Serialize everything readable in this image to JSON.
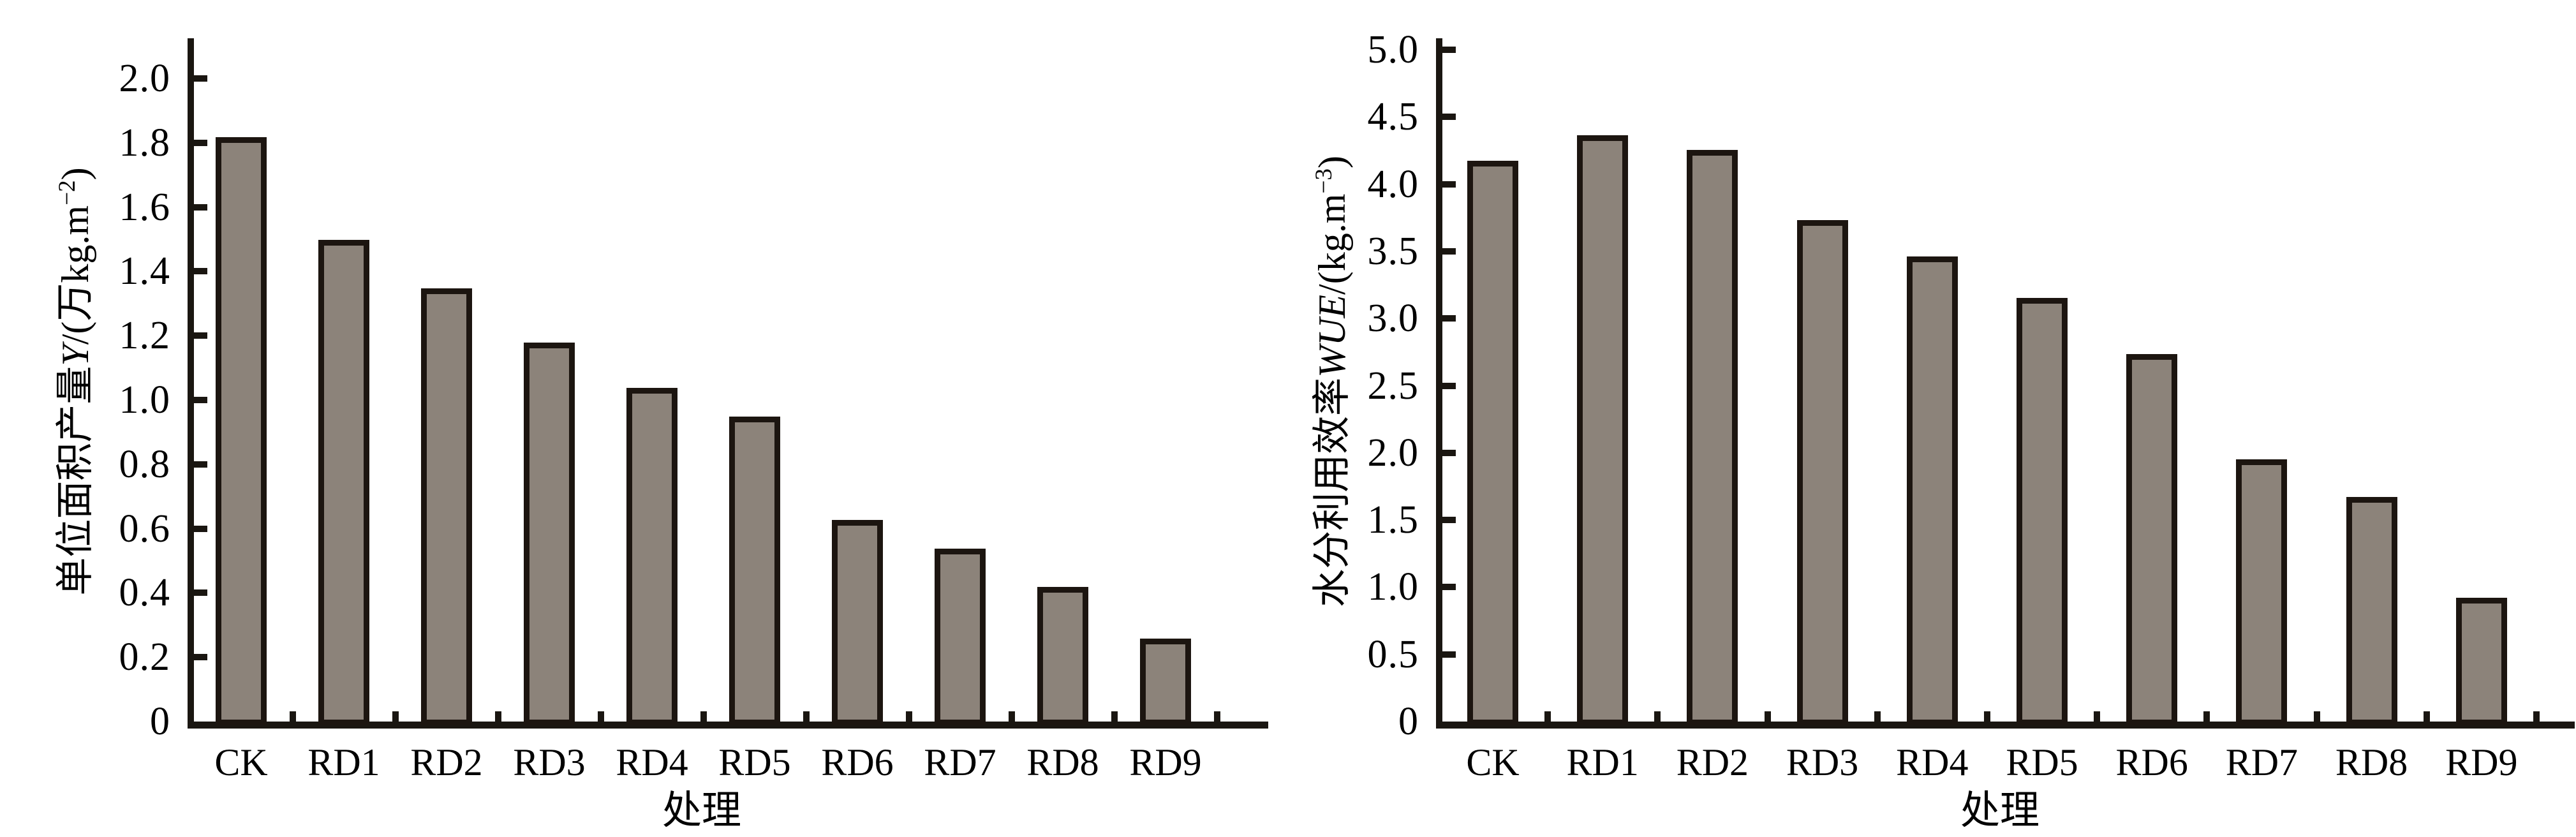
{
  "figure": {
    "description": "Two-panel bar chart figure comparing treatments",
    "background": "#ffffff",
    "bar_fill_color": "#8c837a",
    "bar_border_color": "#1c1510",
    "axis_color": "#1a1611"
  },
  "chart_data": [
    {
      "type": "bar",
      "title": "",
      "xlabel": "处理",
      "ylabel": "单位面积产量Y/(万kg.m−2)",
      "ylabel_parts": {
        "prefix": "单位面积产量",
        "variable": "Y",
        "unit_open": "/(万kg.m",
        "unit_sup": "−2",
        "unit_close": ")"
      },
      "categories": [
        "CK",
        "RD1",
        "RD2",
        "RD3",
        "RD4",
        "RD5",
        "RD6",
        "RD7",
        "RD8",
        "RD9"
      ],
      "values": [
        1.8,
        1.48,
        1.33,
        1.16,
        1.02,
        0.93,
        0.61,
        0.52,
        0.4,
        0.24
      ],
      "ylim": [
        0,
        2.15
      ],
      "grid": false,
      "legend": null,
      "yticks": [
        {
          "v": 0,
          "label": "0"
        },
        {
          "v": 0.2,
          "label": "0.2"
        },
        {
          "v": 0.4,
          "label": "0.4"
        },
        {
          "v": 0.6,
          "label": "0.6"
        },
        {
          "v": 0.8,
          "label": "0.8"
        },
        {
          "v": 1.0,
          "label": "1.0"
        },
        {
          "v": 1.2,
          "label": "1.2"
        },
        {
          "v": 1.4,
          "label": "1.4"
        },
        {
          "v": 1.6,
          "label": "1.6"
        },
        {
          "v": 1.8,
          "label": "1.8"
        },
        {
          "v": 2.0,
          "label": "2.0"
        }
      ]
    },
    {
      "type": "bar",
      "title": "",
      "xlabel": "处理",
      "ylabel": "水分利用效率WUE/(kg.m−3)",
      "ylabel_parts": {
        "prefix": "水分利用效率",
        "variable": "WUE",
        "unit_open": "/(kg.m",
        "unit_sup": "−3",
        "unit_close": ")"
      },
      "categories": [
        "CK",
        "RD1",
        "RD2",
        "RD3",
        "RD4",
        "RD5",
        "RD6",
        "RD7",
        "RD8",
        "RD9"
      ],
      "values": [
        4.13,
        4.32,
        4.21,
        3.69,
        3.42,
        3.11,
        2.69,
        1.91,
        1.63,
        0.88
      ],
      "ylim": [
        0,
        5.1
      ],
      "grid": false,
      "legend": null,
      "yticks": [
        {
          "v": 0,
          "label": "0"
        },
        {
          "v": 0.5,
          "label": "0.5"
        },
        {
          "v": 1.0,
          "label": "1.0"
        },
        {
          "v": 1.5,
          "label": "1.5"
        },
        {
          "v": 2.0,
          "label": "2.0"
        },
        {
          "v": 2.5,
          "label": "2.5"
        },
        {
          "v": 3.0,
          "label": "3.0"
        },
        {
          "v": 3.5,
          "label": "3.5"
        },
        {
          "v": 4.0,
          "label": "4.0"
        },
        {
          "v": 4.5,
          "label": "4.5"
        },
        {
          "v": 5.0,
          "label": "5.0"
        }
      ]
    }
  ]
}
